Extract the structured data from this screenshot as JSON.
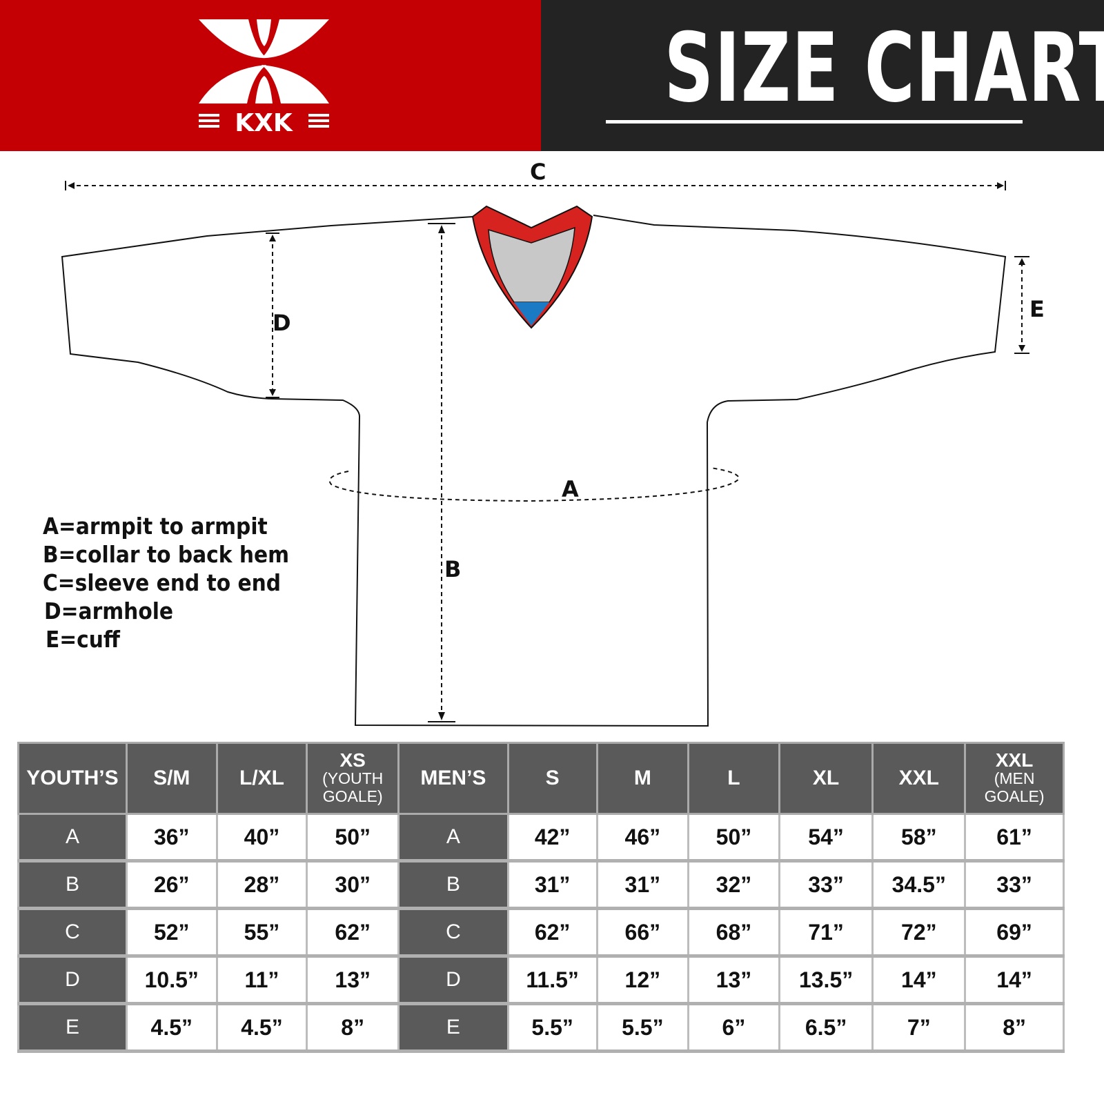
{
  "header": {
    "brand": "KXK",
    "title": "SIZE CHART",
    "colors": {
      "brand_red": "#c40005",
      "dark": "#232323"
    }
  },
  "diagram": {
    "labels": {
      "a": "A",
      "b": "B",
      "c": "C",
      "d": "D",
      "e": "E"
    },
    "neck_colors": {
      "trim": "#d7231f",
      "inner": "#c8c8c8",
      "tag": "#1a7ac4"
    }
  },
  "legend": [
    "A=armpit to armpit",
    "B=collar to back hem",
    "C=sleeve end to end",
    "D=armhole",
    "E=cuff"
  ],
  "table": {
    "headers": [
      {
        "main": "YOUTH’S"
      },
      {
        "main": "S/M"
      },
      {
        "main": "L/XL"
      },
      {
        "main": "XS",
        "sub": "(YOUTH GOALE)"
      },
      {
        "main": "MEN’S"
      },
      {
        "main": "S"
      },
      {
        "main": "M"
      },
      {
        "main": "L"
      },
      {
        "main": "XL"
      },
      {
        "main": "XXL"
      },
      {
        "main": "XXL",
        "sub": "(MEN GOALE)"
      }
    ],
    "rows": [
      [
        "A",
        "36”",
        "40”",
        "50”",
        "A",
        "42”",
        "46”",
        "50”",
        "54”",
        "58”",
        "61”"
      ],
      [
        "B",
        "26”",
        "28”",
        "30”",
        "B",
        "31”",
        "31”",
        "32”",
        "33”",
        "34.5”",
        "33”"
      ],
      [
        "C",
        "52”",
        "55”",
        "62”",
        "C",
        "62”",
        "66”",
        "68”",
        "71”",
        "72”",
        "69”"
      ],
      [
        "D",
        "10.5”",
        "11”",
        "13”",
        "D",
        "11.5”",
        "12”",
        "13”",
        "13.5”",
        "14”",
        "14”"
      ],
      [
        "E",
        "4.5”",
        "4.5”",
        "8”",
        "E",
        "5.5”",
        "5.5”",
        "6”",
        "6.5”",
        "7”",
        "8”"
      ]
    ]
  }
}
